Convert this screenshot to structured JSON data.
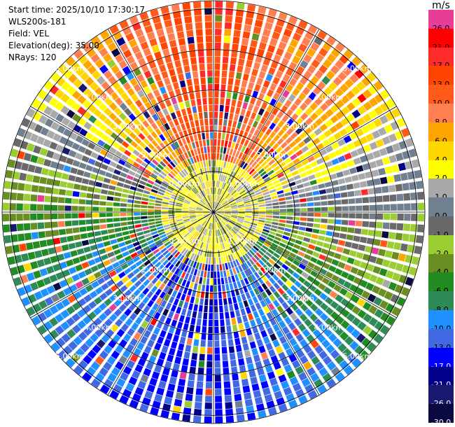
{
  "info": {
    "start_time": "Start time: 2025/10/10 17:30:17",
    "instrument": "WLS200s-181",
    "field": "Field: VEL",
    "elevation": "Elevation(deg): 35.00",
    "nrays": "NRays: 120"
  },
  "colorbar": {
    "unit": "m/s",
    "segments": [
      {
        "label": "26.0",
        "color": "#e83d96"
      },
      {
        "label": "21.0",
        "color": "#ff0000"
      },
      {
        "label": "17.0",
        "color": "#ff2a2a"
      },
      {
        "label": "13.0",
        "color": "#ff4500"
      },
      {
        "label": "10.0",
        "color": "#ff5a1a"
      },
      {
        "label": "8.0",
        "color": "#ff7f50"
      },
      {
        "label": "6.0",
        "color": "#ffa500"
      },
      {
        "label": "4.0",
        "color": "#ffd700"
      },
      {
        "label": "2.0",
        "color": "#ffff00"
      },
      {
        "label": "1.0",
        "color": "#a9a9a9"
      },
      {
        "label": "0.0",
        "color": "#708090"
      },
      {
        "label": "-1.0",
        "color": "#696969"
      },
      {
        "label": "-2.0",
        "color": "#9acd32"
      },
      {
        "label": "-4.0",
        "color": "#6b8e23"
      },
      {
        "label": "-6.0",
        "color": "#228b22"
      },
      {
        "label": "-8.0",
        "color": "#2e8b57"
      },
      {
        "label": "-10.0",
        "color": "#1e90ff"
      },
      {
        "label": "-13.0",
        "color": "#4169e1"
      },
      {
        "label": "-17.0",
        "color": "#0000ff"
      },
      {
        "label": "-21.0",
        "color": "#00008b"
      },
      {
        "label": "-26.0",
        "color": "#191970"
      },
      {
        "label": "-30.0",
        "color": "#0a0a40"
      }
    ]
  },
  "chart_data": {
    "type": "heatmap",
    "projection": "polar PPI",
    "field": "VEL",
    "units": "m/s",
    "range_rings_km": [
      1,
      2,
      3,
      4,
      5
    ],
    "ring_labels": [
      "1.00km",
      "2.00km",
      "3.00km",
      "4.00km",
      "5.00km"
    ],
    "n_rays": 120,
    "elevation_deg": 35.0,
    "dominant_pattern": {
      "north": "10.0 to 17.0",
      "northeast": "6.0 to 13.0",
      "east": "-2.0 to 4.0",
      "southeast": "-6.0 to -13.0",
      "south": "-13.0 to -21.0",
      "southwest": "-10.0 to -13.0",
      "west": "-1.0 to -6.0",
      "northwest": "2.0 to 10.0",
      "center": "1.0 to 4.0"
    }
  }
}
